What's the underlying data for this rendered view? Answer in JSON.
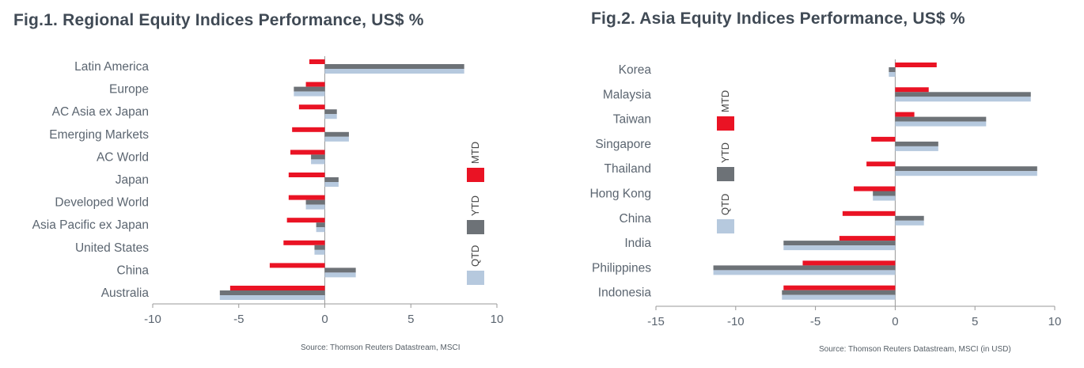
{
  "colors": {
    "MTD": "#ea1324",
    "YTD": "#6d7277",
    "QTD": "#b6c9de",
    "axis": "#999999",
    "label": "#5b6570"
  },
  "chart_data": [
    {
      "type": "bar",
      "orientation": "horizontal",
      "title": "Fig.1. Regional Equity Indices Performance, US$ %",
      "source": "Source: Thomson Reuters Datastream, MSCI",
      "categories": [
        "Latin America",
        "Europe",
        "AC Asia ex Japan",
        "Emerging Markets",
        "AC World",
        "Japan",
        "Developed World",
        "Asia Pacific ex Japan",
        "United States",
        "China",
        "Australia"
      ],
      "series": [
        {
          "name": "MTD",
          "values": [
            -0.9,
            -1.1,
            -1.5,
            -1.9,
            -2.0,
            -2.1,
            -2.1,
            -2.2,
            -2.4,
            -3.2,
            -5.5
          ]
        },
        {
          "name": "YTD",
          "values": [
            8.1,
            -1.8,
            0.7,
            1.4,
            -0.8,
            0.8,
            -1.1,
            -0.5,
            -0.6,
            1.8,
            -6.1
          ]
        },
        {
          "name": "QTD",
          "values": [
            8.1,
            -1.8,
            0.7,
            1.4,
            -0.8,
            0.8,
            -1.1,
            -0.5,
            -0.6,
            1.8,
            -6.1
          ]
        }
      ],
      "xlim": [
        -10,
        10
      ],
      "xticks": [
        -10,
        -5,
        0,
        5,
        10
      ],
      "legend": "right"
    },
    {
      "type": "bar",
      "orientation": "horizontal",
      "title": "Fig.2. Asia Equity Indices Performance, US$ %",
      "source": "Source: Thomson Reuters Datastream, MSCI (in USD)",
      "categories": [
        "Korea",
        "Malaysia",
        "Taiwan",
        "Singapore",
        "Thailand",
        "Hong Kong",
        "China",
        "India",
        "Philippines",
        "Indonesia"
      ],
      "series": [
        {
          "name": "MTD",
          "values": [
            2.6,
            2.1,
            1.2,
            -1.5,
            -1.8,
            -2.6,
            -3.3,
            -3.5,
            -5.8,
            -7.0
          ]
        },
        {
          "name": "YTD",
          "values": [
            -0.4,
            8.5,
            5.7,
            2.7,
            8.9,
            -1.4,
            1.8,
            -7.0,
            -11.4,
            -7.1
          ]
        },
        {
          "name": "QTD",
          "values": [
            -0.4,
            8.5,
            5.7,
            2.7,
            8.9,
            -1.4,
            1.8,
            -7.0,
            -11.4,
            -7.1
          ]
        }
      ],
      "xlim": [
        -15,
        10
      ],
      "xticks": [
        -15,
        -10,
        -5,
        0,
        5,
        10
      ],
      "legend": "left"
    }
  ]
}
